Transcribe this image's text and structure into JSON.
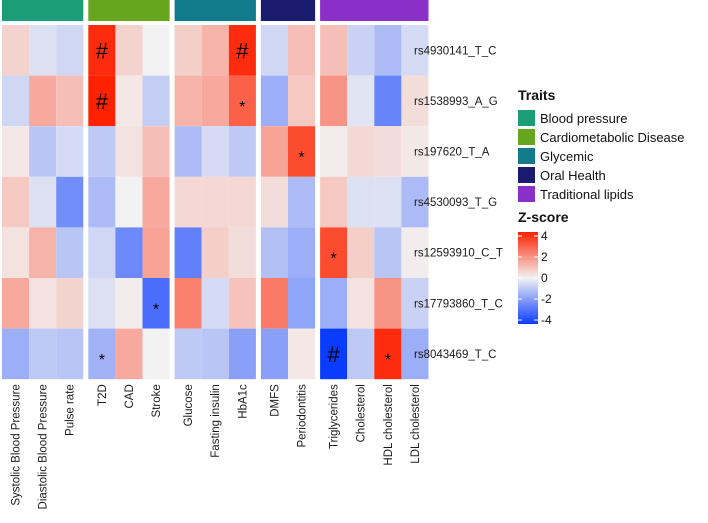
{
  "chart_data": {
    "type": "heatmap",
    "title": "",
    "rows": [
      "rs4930141_T_C",
      "rs1538993_A_G",
      "rs197620_T_A",
      "rs4530093_T_G",
      "rs12593910_C_T",
      "rs17793860_T_C",
      "rs8043469_T_C"
    ],
    "columns": [
      "Systolic Blood Pressure",
      "Diastolic Blood Pressure",
      "Pulse rate",
      "T2D",
      "CAD",
      "Stroke",
      "Glucose",
      "Fasting insulin",
      "HbA1c",
      "DMFS",
      "Periodontitis",
      "Triglycerides",
      "Cholesterol",
      "HDL cholesterol",
      "LDL cholesterol"
    ],
    "groups": [
      {
        "name": "Blood pressure",
        "color": "#1b9e77",
        "columns": [
          "Systolic Blood Pressure",
          "Diastolic Blood Pressure",
          "Pulse rate"
        ]
      },
      {
        "name": "Cardiometabolic Disease",
        "color": "#66a61e",
        "columns": [
          "T2D",
          "CAD",
          "Stroke"
        ]
      },
      {
        "name": "Glycemic",
        "color": "#117a8b",
        "columns": [
          "Glucose",
          "Fasting insulin",
          "HbA1c"
        ]
      },
      {
        "name": "Oral Health",
        "color": "#1a1a6e",
        "columns": [
          "DMFS",
          "Periodontitis"
        ]
      },
      {
        "name": "Traditional lipids",
        "color": "#8b2fc9",
        "columns": [
          "Triglycerides",
          "Cholesterol",
          "HDL cholesterol",
          "LDL cholesterol"
        ]
      }
    ],
    "values": [
      [
        0.6,
        -0.4,
        -0.6,
        3.8,
        0.6,
        0.0,
        0.7,
        1.2,
        3.8,
        -0.6,
        1.0,
        1.0,
        -0.7,
        -1.2,
        -0.5
      ],
      [
        -0.6,
        1.4,
        1.0,
        4.0,
        0.2,
        -0.8,
        1.2,
        1.4,
        2.8,
        -1.5,
        0.8,
        1.8,
        -0.3,
        -2.4,
        0.4
      ],
      [
        0.2,
        -1.0,
        -0.5,
        -0.9,
        0.3,
        1.0,
        -1.2,
        -0.5,
        -0.9,
        1.5,
        3.2,
        0.1,
        0.5,
        0.4,
        0.2
      ],
      [
        0.8,
        -0.4,
        -2.2,
        -1.2,
        0.0,
        1.4,
        0.5,
        0.5,
        0.5,
        0.4,
        -1.2,
        0.8,
        -0.4,
        -0.4,
        -1.2
      ],
      [
        0.3,
        1.2,
        -1.0,
        -0.6,
        -2.3,
        1.5,
        -2.5,
        0.7,
        0.4,
        -1.1,
        -1.5,
        3.2,
        0.7,
        -1.0,
        0.1
      ],
      [
        1.4,
        0.3,
        0.6,
        -0.4,
        0.1,
        -2.9,
        2.2,
        -0.5,
        0.9,
        2.3,
        -1.7,
        -1.5,
        0.3,
        1.8,
        -0.7
      ],
      [
        -1.5,
        -0.9,
        -1.0,
        -1.4,
        1.4,
        0.0,
        -0.9,
        -1.0,
        -1.8,
        -1.8,
        0.2,
        -4.0,
        -0.9,
        3.8,
        -1.5
      ]
    ],
    "annotations": [
      {
        "row": "rs4930141_T_C",
        "column": "T2D",
        "symbol": "#"
      },
      {
        "row": "rs4930141_T_C",
        "column": "HbA1c",
        "symbol": "#"
      },
      {
        "row": "rs1538993_A_G",
        "column": "T2D",
        "symbol": "#"
      },
      {
        "row": "rs1538993_A_G",
        "column": "HbA1c",
        "symbol": "*"
      },
      {
        "row": "rs197620_T_A",
        "column": "Periodontitis",
        "symbol": "*"
      },
      {
        "row": "rs12593910_C_T",
        "column": "Triglycerides",
        "symbol": "*"
      },
      {
        "row": "rs17793860_T_C",
        "column": "Stroke",
        "symbol": "*"
      },
      {
        "row": "rs8043469_T_C",
        "column": "T2D",
        "symbol": "*"
      },
      {
        "row": "rs8043469_T_C",
        "column": "Triglycerides",
        "symbol": "#"
      },
      {
        "row": "rs8043469_T_C",
        "column": "HDL cholesterol",
        "symbol": "*"
      }
    ],
    "legend_traits": {
      "title": "Traits",
      "entries": [
        "Blood pressure",
        "Cardiometabolic Disease",
        "Glycemic",
        "Oral Health",
        "Traditional lipids"
      ]
    },
    "legend_zscore": {
      "title": "Z-score",
      "range": [
        -4,
        4
      ],
      "ticks": [
        "4",
        "2",
        "0",
        "-2",
        "-4"
      ],
      "colors": {
        "low": "#0a3cff",
        "mid": "#f2f2f2",
        "high": "#ff2200"
      }
    },
    "placement": "right"
  }
}
